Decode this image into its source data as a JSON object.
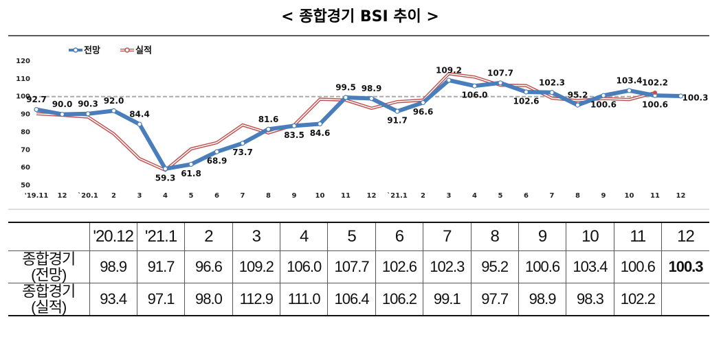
{
  "chart_data": {
    "type": "line",
    "title": "< 종합경기 BSI 추이 >",
    "categories": [
      "'19.11",
      "12",
      "`20.1",
      "2",
      "3",
      "4",
      "5",
      "6",
      "7",
      "8",
      "9",
      "10",
      "11",
      "12",
      "`21.1",
      "2",
      "3",
      "4",
      "5",
      "6",
      "7",
      "8",
      "9",
      "10",
      "11",
      "12"
    ],
    "series": [
      {
        "name": "전망",
        "color": "#4a7ebb",
        "values": [
          92.7,
          90.0,
          90.3,
          92.0,
          84.4,
          59.3,
          61.8,
          68.9,
          73.7,
          81.6,
          83.5,
          84.6,
          99.5,
          98.9,
          91.7,
          96.6,
          109.2,
          106.0,
          107.7,
          102.6,
          102.3,
          95.2,
          100.6,
          103.4,
          100.6,
          100.3
        ],
        "value_labels": [
          "92.7",
          "90.0",
          "90.3",
          "92.0",
          "84.4",
          "59.3",
          "61.8",
          "68.9",
          "73.7",
          "81.6",
          "83.5",
          "84.6",
          "99.5",
          "98.9",
          "91.7",
          "96.6",
          "109.2",
          "106.0",
          "107.7",
          "102.6",
          "102.3",
          "95.2",
          "100.6",
          "103.4",
          "100.6",
          "100.3"
        ]
      },
      {
        "name": "실적",
        "color": "#c0504d",
        "values": [
          90.3,
          89.5,
          88.5,
          79,
          65,
          58.5,
          70.5,
          74,
          84,
          79.5,
          84,
          98.5,
          98,
          93.4,
          97.1,
          98.0,
          112.9,
          111.0,
          106.4,
          106.2,
          99.1,
          97.7,
          98.9,
          98.3,
          102.2,
          null
        ],
        "value_labels": [
          null,
          null,
          null,
          null,
          null,
          null,
          null,
          null,
          null,
          null,
          null,
          null,
          null,
          null,
          null,
          null,
          null,
          null,
          null,
          null,
          null,
          null,
          null,
          null,
          "102.2",
          null
        ]
      }
    ],
    "ylim": [
      50,
      120
    ],
    "yticks": [
      50,
      60,
      70,
      80,
      90,
      100,
      110,
      120
    ],
    "reference_line": 100
  },
  "table": {
    "header": [
      "'20.12",
      "'21.1",
      "2",
      "3",
      "4",
      "5",
      "6",
      "7",
      "8",
      "9",
      "10",
      "11",
      "12"
    ],
    "rows": [
      [
        "종합경기\n(전망)",
        "98.9",
        "91.7",
        "96.6",
        "109.2",
        "106.0",
        "107.7",
        "102.6",
        "102.3",
        "95.2",
        "100.6",
        "103.4",
        "100.6",
        "100.3"
      ],
      [
        "종합경기\n(실적)",
        "93.4",
        "97.1",
        "98.0",
        "112.9",
        "111.0",
        "106.4",
        "106.2",
        "99.1",
        "97.7",
        "98.9",
        "98.3",
        "102.2"
      ]
    ]
  }
}
